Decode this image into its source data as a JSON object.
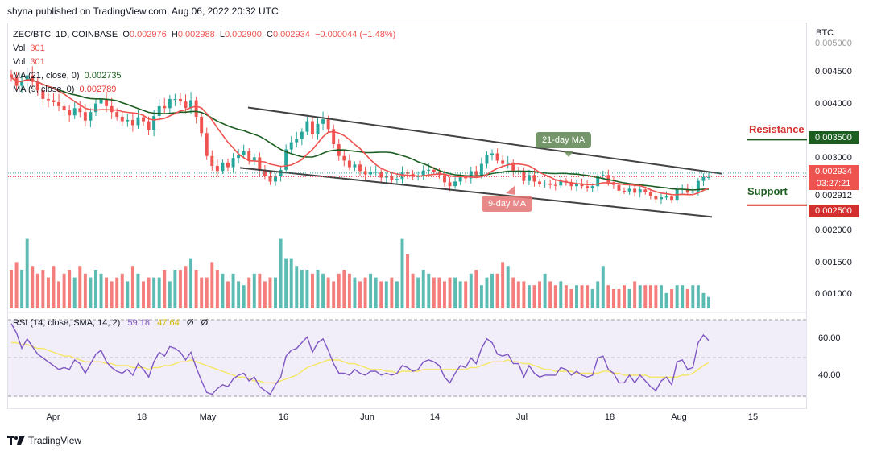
{
  "header": {
    "publisher_line": "shyna published on TradingView.com, Aug 06, 2022 20:32 UTC"
  },
  "legend": {
    "symbol": "ZEC/BTC, 1D, COINBASE",
    "open_label": "O",
    "open": "0.002976",
    "high_label": "H",
    "high": "0.002988",
    "low_label": "L",
    "low": "0.002900",
    "close_label": "C",
    "close": "0.002934",
    "change": "−0.000044 (−1.48%)",
    "vol1_label": "Vol",
    "vol1": "301",
    "vol2_label": "Vol",
    "vol2": "301",
    "ma21_label": "MA (21, close, 0)",
    "ma21_value": "0.002735",
    "ma9_label": "MA (9, close, 0)",
    "ma9_value": "0.002789"
  },
  "rsi_legend": {
    "label": "RSI (14, close, SMA, 14, 2)",
    "rsi_value": "59.18",
    "sma_value": "47.64",
    "extra1": "Ø",
    "extra2": "Ø"
  },
  "axis": {
    "currency": "BTC",
    "price_ticks": [
      "0.005000",
      "0.004500",
      "0.004000",
      "0.003500",
      "0.003000",
      "0.002500",
      "0.002000",
      "0.001500",
      "0.001000"
    ],
    "rsi_ticks": [
      "60.00",
      "40.00"
    ],
    "x_ticks": [
      "Apr",
      "18",
      "May",
      "16",
      "Jun",
      "14",
      "Jul",
      "18",
      "Aug",
      "15"
    ]
  },
  "price_labels": {
    "resistance_value": "0.003500",
    "current_value": "0.002934",
    "countdown": "03:27:21",
    "ma_value": "0.002912",
    "support_value": "0.002500",
    "ma_value_top": "0.003000"
  },
  "annotations": {
    "resistance": "Resistance",
    "support": "Support",
    "ma21_bubble": "21-day MA",
    "ma9_bubble": "9-day MA"
  },
  "colors": {
    "up": "#26a69a",
    "down": "#ef5350",
    "ma21": "#1b5e20",
    "ma9": "#ef5350",
    "rsi": "#7e57c2",
    "rsi_sma": "#f5e663",
    "resistance": "#1b5e20",
    "support": "#d32f2f"
  },
  "footer": {
    "brand": "TradingView"
  },
  "chart_data": [
    {
      "type": "candlestick",
      "title": "ZEC/BTC, 1D, COINBASE",
      "ylabel": "BTC",
      "ylim": [
        0.0009,
        0.0052
      ],
      "x_ticks": [
        "Apr",
        "18",
        "May",
        "16",
        "Jun",
        "14",
        "Jul",
        "18",
        "Aug",
        "15"
      ],
      "close": [
        0.00445,
        0.00432,
        0.0044,
        0.00448,
        0.00438,
        0.00425,
        0.00412,
        0.0041,
        0.00407,
        0.00401,
        0.00395,
        0.00387,
        0.00398,
        0.00392,
        0.00379,
        0.00392,
        0.00405,
        0.00412,
        0.00401,
        0.00392,
        0.00385,
        0.00378,
        0.0038,
        0.00372,
        0.00384,
        0.00378,
        0.00365,
        0.00386,
        0.00401,
        0.00398,
        0.00412,
        0.00412,
        0.00408,
        0.00398,
        0.0041,
        0.00385,
        0.0036,
        0.00325,
        0.0031,
        0.00302,
        0.00315,
        0.00308,
        0.00322,
        0.00327,
        0.00332,
        0.00318,
        0.00323,
        0.00303,
        0.00294,
        0.00286,
        0.00294,
        0.00304,
        0.00335,
        0.00346,
        0.00351,
        0.00362,
        0.00378,
        0.00358,
        0.00374,
        0.00381,
        0.00366,
        0.00343,
        0.00325,
        0.00318,
        0.00308,
        0.00312,
        0.00302,
        0.00297,
        0.00301,
        0.00301,
        0.00292,
        0.00294,
        0.00288,
        0.0029,
        0.003,
        0.00298,
        0.00293,
        0.00295,
        0.00303,
        0.00304,
        0.00301,
        0.00296,
        0.00285,
        0.00279,
        0.00286,
        0.00294,
        0.00291,
        0.00302,
        0.00296,
        0.00313,
        0.00327,
        0.00329,
        0.00318,
        0.00313,
        0.00315,
        0.00303,
        0.00301,
        0.00287,
        0.00296,
        0.00286,
        0.00282,
        0.00283,
        0.00281,
        0.0028,
        0.00287,
        0.00285,
        0.00279,
        0.00283,
        0.00279,
        0.00276,
        0.00279,
        0.00294,
        0.00296,
        0.00285,
        0.00281,
        0.00272,
        0.00271,
        0.00275,
        0.00269,
        0.00274,
        0.0027,
        0.00264,
        0.00259,
        0.00262,
        0.00263,
        0.00258,
        0.00274,
        0.00275,
        0.00269,
        0.00271,
        0.00287,
        0.00293,
        0.00293
      ],
      "series": [
        {
          "name": "MA (21, close, 0)",
          "last": 0.002735
        },
        {
          "name": "MA (9, close, 0)",
          "last": 0.002789
        }
      ],
      "levels": {
        "resistance": 0.0035,
        "support": 0.0025,
        "current": 0.002934
      },
      "trend_channel": {
        "upper_start": 0.00399,
        "upper_end": 0.00298,
        "lower_start": 0.00307,
        "lower_end": 0.00232
      }
    },
    {
      "type": "bar",
      "title": "Vol",
      "note": "Volume histogram, color follows candle direction",
      "values": [
        1.0,
        1.2,
        1.0,
        1.8,
        1.1,
        0.9,
        1.0,
        0.8,
        1.1,
        0.7,
        0.9,
        1.0,
        0.8,
        1.1,
        0.9,
        0.8,
        1.0,
        0.9,
        0.8,
        0.7,
        0.8,
        0.9,
        0.7,
        1.1,
        0.9,
        0.7,
        0.8,
        0.8,
        0.8,
        1.0,
        0.7,
        1.0,
        1.0,
        1.1,
        1.3,
        1.0,
        0.8,
        0.8,
        1.2,
        1.0,
        0.9,
        0.7,
        0.9,
        0.7,
        0.6,
        0.8,
        0.9,
        0.9,
        0.7,
        0.8,
        0.8,
        1.8,
        1.3,
        1.3,
        1.1,
        1.0,
        1.0,
        0.9,
        1.0,
        0.9,
        0.8,
        0.7,
        0.9,
        1.0,
        0.9,
        0.8,
        0.7,
        0.8,
        0.9,
        0.8,
        0.7,
        0.7,
        0.8,
        0.7,
        1.8,
        1.4,
        0.9,
        0.8,
        1.0,
        0.9,
        0.8,
        0.8,
        0.7,
        0.8,
        0.8,
        0.7,
        0.7,
        0.9,
        1.0,
        0.6,
        0.8,
        0.9,
        0.9,
        1.2,
        1.1,
        0.8,
        0.7,
        0.7,
        0.6,
        0.6,
        0.7,
        0.9,
        0.7,
        0.6,
        0.7,
        0.6,
        0.5,
        0.6,
        0.6,
        0.6,
        0.5,
        0.7,
        1.1,
        0.6,
        0.5,
        0.5,
        0.6,
        0.5,
        0.7,
        0.6,
        0.6,
        0.6,
        0.6,
        0.6,
        0.4,
        0.5,
        0.6,
        0.6,
        0.5,
        0.6,
        0.6,
        0.4,
        0.3
      ]
    },
    {
      "type": "line",
      "title": "RSI (14, close, SMA, 14, 2)",
      "ylim": [
        25,
        72
      ],
      "series": [
        {
          "name": "RSI",
          "values": [
            68,
            63,
            55,
            60,
            56,
            52,
            50,
            48,
            46,
            44,
            45,
            44,
            49,
            47,
            42,
            47,
            52,
            54,
            48,
            45,
            43,
            42,
            44,
            41,
            47,
            44,
            40,
            48,
            53,
            51,
            56,
            55,
            53,
            49,
            53,
            45,
            38,
            32,
            31,
            34,
            36,
            35,
            39,
            41,
            42,
            38,
            40,
            35,
            33,
            31,
            36,
            40,
            51,
            54,
            55,
            58,
            61,
            53,
            58,
            60,
            54,
            47,
            42,
            42,
            41,
            44,
            42,
            41,
            43,
            43,
            41,
            42,
            41,
            42,
            46,
            45,
            43,
            44,
            48,
            49,
            48,
            46,
            40,
            37,
            42,
            46,
            45,
            50,
            47,
            55,
            60,
            58,
            52,
            51,
            52,
            47,
            47,
            40,
            46,
            42,
            40,
            41,
            41,
            41,
            45,
            44,
            41,
            43,
            41,
            40,
            41,
            50,
            51,
            44,
            42,
            37,
            37,
            41,
            37,
            41,
            38,
            35,
            33,
            38,
            40,
            36,
            48,
            49,
            44,
            45,
            58,
            62,
            59.18
          ]
        },
        {
          "name": "SMA",
          "values": [
            58,
            58,
            57,
            57,
            56,
            55,
            55,
            54,
            53,
            52,
            51,
            51,
            50,
            49,
            48,
            48,
            48,
            48,
            47,
            47,
            46,
            46,
            46,
            45,
            45,
            45,
            44,
            45,
            45,
            46,
            46,
            47,
            48,
            48,
            49,
            48,
            47,
            46,
            45,
            44,
            43,
            42,
            41,
            40,
            40,
            39,
            38,
            38,
            37,
            37,
            37,
            38,
            39,
            40,
            41,
            43,
            45,
            46,
            47,
            48,
            49,
            49,
            49,
            48,
            47,
            47,
            46,
            45,
            44,
            44,
            44,
            43,
            43,
            42,
            43,
            43,
            43,
            43,
            44,
            44,
            44,
            44,
            44,
            44,
            44,
            44,
            44,
            45,
            45,
            46,
            47,
            48,
            48,
            48,
            49,
            48,
            48,
            47,
            47,
            46,
            45,
            44,
            44,
            43,
            43,
            43,
            43,
            42,
            42,
            42,
            42,
            42,
            43,
            43,
            42,
            42,
            41,
            41,
            41,
            41,
            41,
            40,
            40,
            40,
            40,
            40,
            40,
            41,
            41,
            42,
            44,
            46,
            47.64
          ]
        }
      ],
      "bands": [
        70,
        50,
        30
      ]
    }
  ]
}
